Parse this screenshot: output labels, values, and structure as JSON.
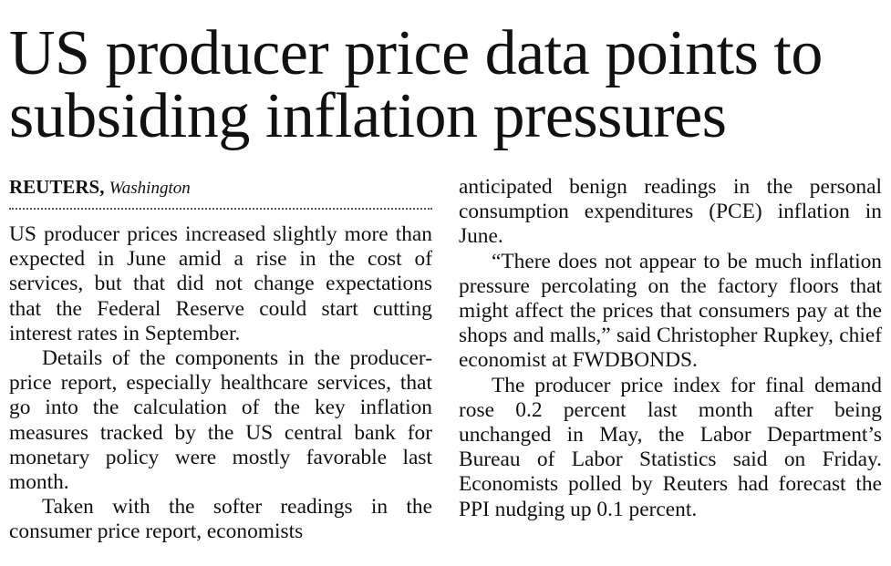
{
  "article": {
    "headline": "US producer price data points to subsiding inflation pressures",
    "byline": {
      "agency": "REUTERS,",
      "place": "Washington"
    },
    "paragraphs": [
      "US producer prices increased slightly more than expected in June amid a rise in the cost of services, but that did not change expectations that the Federal Reserve could start cutting interest rates in September.",
      "Details of the components in the producer-price report, especially healthcare services, that go into the calculation of the key inflation measures tracked by the US central bank for monetary policy were mostly favorable last month.",
      "Taken with the softer readings in the consumer price report, economists",
      "anticipated benign readings in the personal consumption expenditures (PCE) inflation in June.",
      "“There does not appear to be much inflation pressure percolating on the factory floors that might affect the prices that consumers pay at the shops and malls,” said Christopher Rupkey, chief economist at FWDBONDS.",
      "The producer price index for final demand rose 0.2 percent last month after being unchanged in May, the Labor Department’s Bureau of Labor Statistics said on Friday. Economists polled by Reuters had forecast the PPI nudging up 0.1 percent."
    ]
  }
}
